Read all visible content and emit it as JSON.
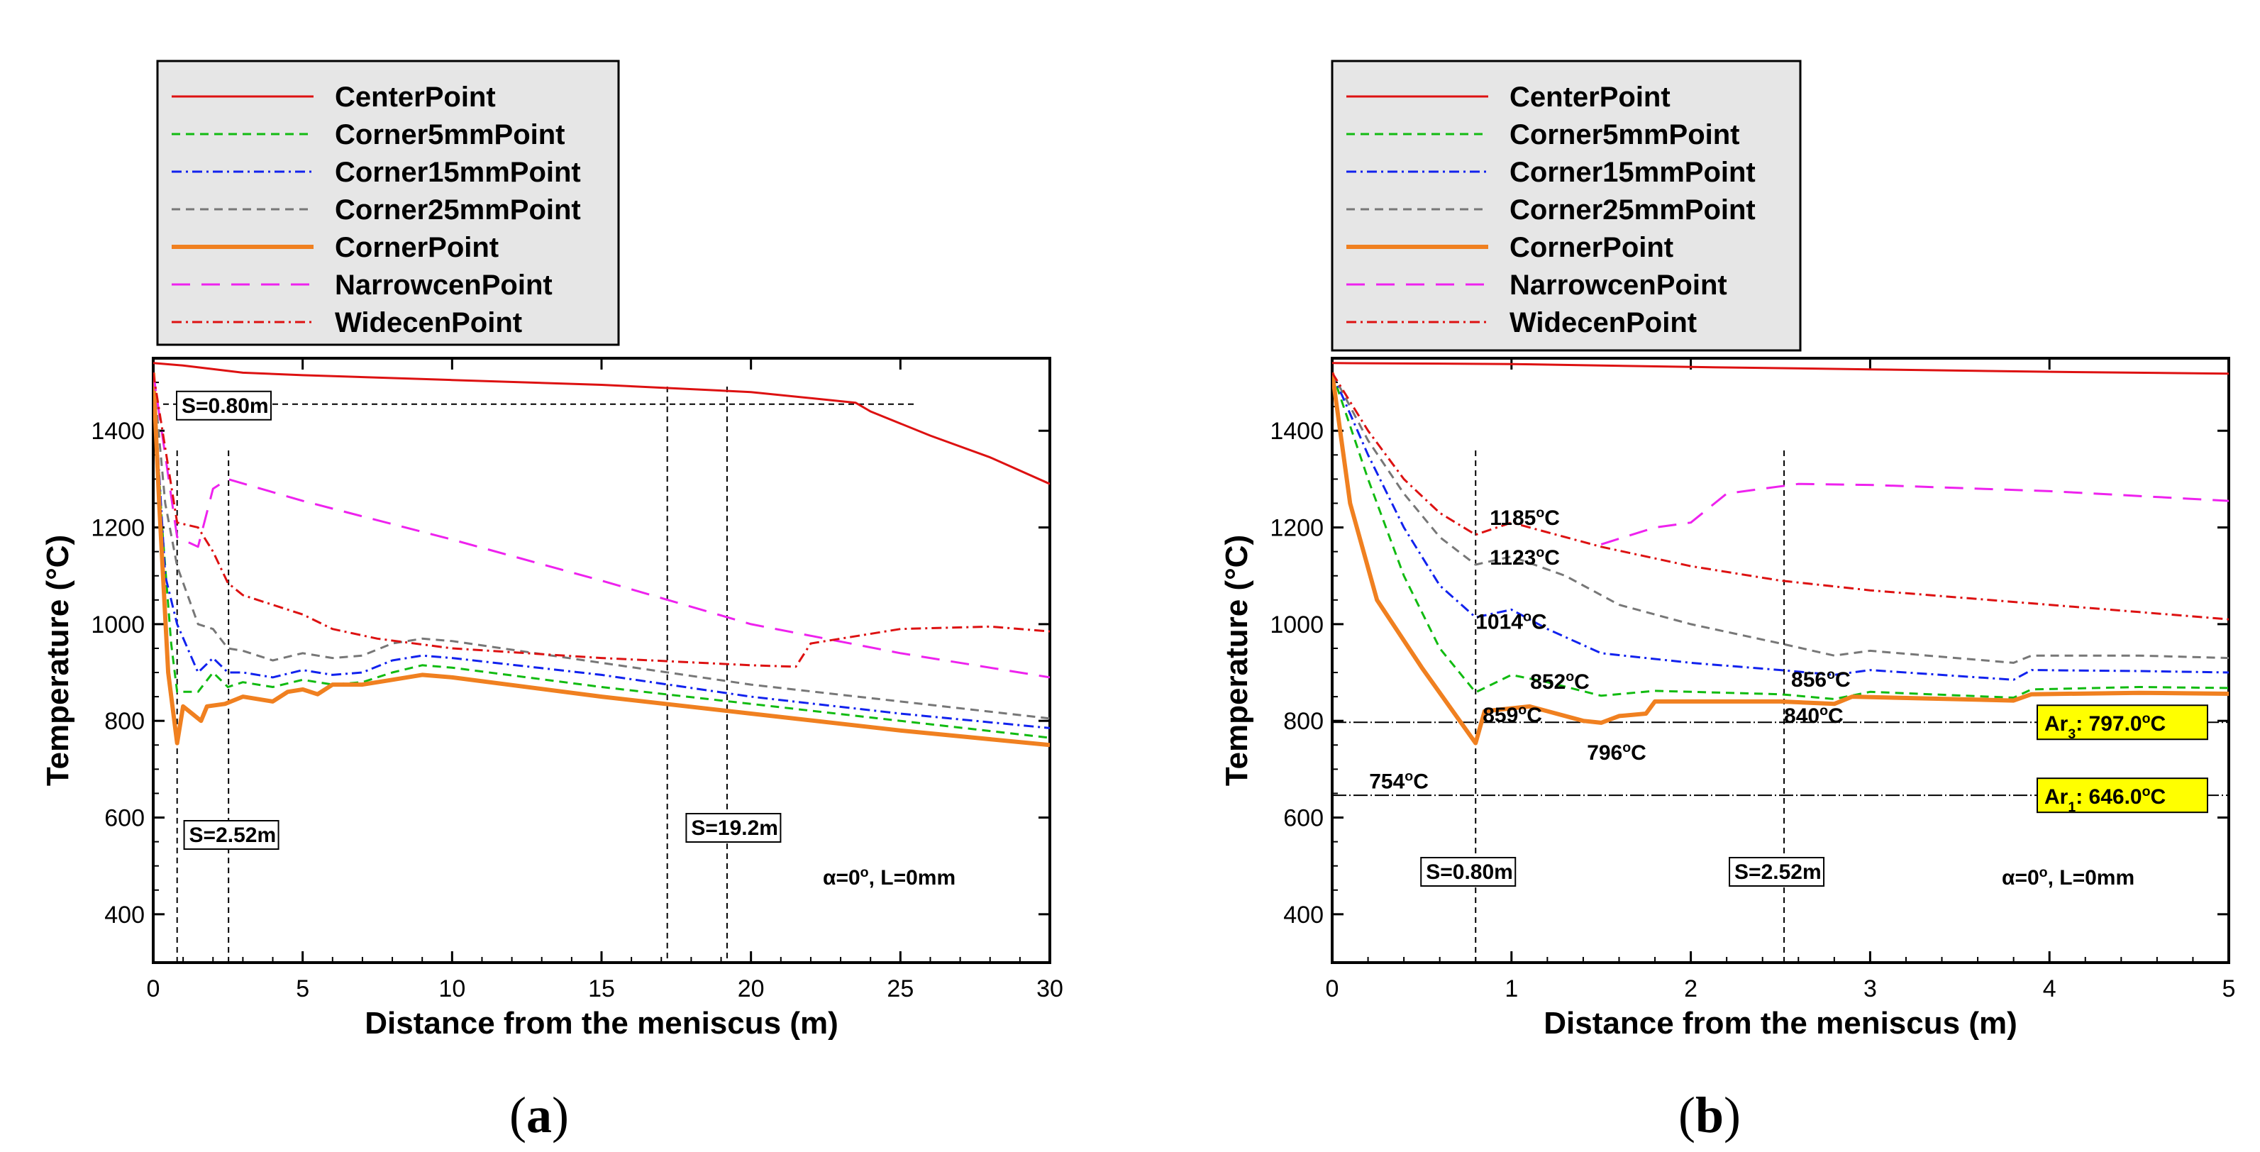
{
  "chart_data": [
    {
      "type": "line",
      "panel_label": "(a)",
      "xlabel": "Distance from the meniscus (m)",
      "ylabel": "Temperature (°C)",
      "xlim": [
        0,
        30
      ],
      "ylim": [
        300,
        1550
      ],
      "xticks": [
        0,
        5,
        10,
        15,
        20,
        25,
        30
      ],
      "yticks": [
        400,
        600,
        800,
        1000,
        1200,
        1400
      ],
      "legend_position": "top-left, outside plot",
      "condition_label": "α=0°, L=0mm",
      "series": [
        {
          "name": "CenterPoint",
          "color": "#dd1111",
          "style": "solid",
          "points": [
            [
              0,
              1540
            ],
            [
              1,
              1535
            ],
            [
              3,
              1520
            ],
            [
              5,
              1515
            ],
            [
              10,
              1505
            ],
            [
              15,
              1495
            ],
            [
              20,
              1480
            ],
            [
              23.5,
              1458
            ],
            [
              24,
              1440
            ],
            [
              26,
              1390
            ],
            [
              28,
              1345
            ],
            [
              30,
              1290
            ]
          ]
        },
        {
          "name": "Corner5mmPoint",
          "color": "#11bb11",
          "style": "dashed",
          "points": [
            [
              0,
              1520
            ],
            [
              0.3,
              1200
            ],
            [
              0.6,
              960
            ],
            [
              0.8,
              860
            ],
            [
              1.5,
              860
            ],
            [
              2,
              900
            ],
            [
              2.5,
              870
            ],
            [
              3,
              880
            ],
            [
              4,
              870
            ],
            [
              5,
              885
            ],
            [
              6,
              875
            ],
            [
              7,
              880
            ],
            [
              8,
              900
            ],
            [
              9,
              915
            ],
            [
              10,
              910
            ],
            [
              15,
              870
            ],
            [
              20,
              835
            ],
            [
              25,
              800
            ],
            [
              30,
              765
            ]
          ]
        },
        {
          "name": "Corner15mmPoint",
          "color": "#1122ee",
          "style": "dashdot",
          "points": [
            [
              0,
              1520
            ],
            [
              0.4,
              1100
            ],
            [
              0.8,
              1000
            ],
            [
              1.5,
              900
            ],
            [
              2,
              930
            ],
            [
              2.5,
              900
            ],
            [
              3,
              900
            ],
            [
              4,
              890
            ],
            [
              5,
              905
            ],
            [
              6,
              895
            ],
            [
              7,
              900
            ],
            [
              8,
              925
            ],
            [
              9,
              935
            ],
            [
              10,
              930
            ],
            [
              15,
              895
            ],
            [
              20,
              850
            ],
            [
              25,
              815
            ],
            [
              30,
              785
            ]
          ]
        },
        {
          "name": "Corner25mmPoint",
          "color": "#777777",
          "style": "dashed",
          "points": [
            [
              0,
              1520
            ],
            [
              0.4,
              1250
            ],
            [
              0.8,
              1120
            ],
            [
              1.5,
              1000
            ],
            [
              2,
              990
            ],
            [
              2.5,
              950
            ],
            [
              3,
              945
            ],
            [
              4,
              925
            ],
            [
              5,
              940
            ],
            [
              6,
              930
            ],
            [
              7,
              935
            ],
            [
              8,
              960
            ],
            [
              9,
              970
            ],
            [
              10,
              965
            ],
            [
              15,
              920
            ],
            [
              20,
              875
            ],
            [
              25,
              840
            ],
            [
              30,
              805
            ]
          ]
        },
        {
          "name": "CornerPoint",
          "color": "#f08020",
          "style": "thick",
          "points": [
            [
              0,
              1520
            ],
            [
              0.2,
              1250
            ],
            [
              0.5,
              900
            ],
            [
              0.8,
              754
            ],
            [
              1,
              830
            ],
            [
              1.3,
              815
            ],
            [
              1.6,
              800
            ],
            [
              1.8,
              830
            ],
            [
              2.4,
              835
            ],
            [
              3,
              850
            ],
            [
              4,
              840
            ],
            [
              4.5,
              860
            ],
            [
              5,
              865
            ],
            [
              5.5,
              855
            ],
            [
              6,
              875
            ],
            [
              7,
              875
            ],
            [
              8,
              885
            ],
            [
              9,
              895
            ],
            [
              10,
              890
            ],
            [
              15,
              850
            ],
            [
              20,
              815
            ],
            [
              25,
              780
            ],
            [
              30,
              750
            ]
          ]
        },
        {
          "name": "NarrowcenPoint",
          "color": "#ee22ee",
          "style": "longdash",
          "points": [
            [
              0,
              1520
            ],
            [
              0.8,
              1180
            ],
            [
              1.5,
              1160
            ],
            [
              2,
              1280
            ],
            [
              2.5,
              1300
            ],
            [
              5,
              1255
            ],
            [
              10,
              1175
            ],
            [
              15,
              1090
            ],
            [
              20,
              1000
            ],
            [
              25,
              940
            ],
            [
              30,
              890
            ]
          ]
        },
        {
          "name": "WidecenPoint",
          "color": "#dd1111",
          "style": "dashdot",
          "points": [
            [
              0,
              1520
            ],
            [
              0.8,
              1210
            ],
            [
              1.5,
              1200
            ],
            [
              2,
              1150
            ],
            [
              2.5,
              1085
            ],
            [
              3,
              1060
            ],
            [
              4,
              1040
            ],
            [
              5,
              1020
            ],
            [
              6,
              990
            ],
            [
              7.5,
              970
            ],
            [
              10,
              950
            ],
            [
              15,
              930
            ],
            [
              20,
              915
            ],
            [
              21.5,
              912
            ],
            [
              22,
              960
            ],
            [
              25,
              990
            ],
            [
              28,
              995
            ],
            [
              30,
              985
            ]
          ]
        }
      ],
      "reference_lines": [
        {
          "orientation": "vertical",
          "x": 0.8,
          "label": "S=0.80m"
        },
        {
          "orientation": "vertical",
          "x": 2.52,
          "label": "S=2.52m"
        },
        {
          "orientation": "vertical",
          "x": 17.2,
          "label": ""
        },
        {
          "orientation": "vertical",
          "x": 19.2,
          "label": "S=19.2m"
        }
      ],
      "horizontal_line": {
        "y": 1455,
        "x_from": 0,
        "x_to": 25.5
      }
    },
    {
      "type": "line",
      "panel_label": "(b)",
      "xlabel": "Distance from the meniscus (m)",
      "ylabel": "Temperature (°C)",
      "xlim": [
        0,
        5
      ],
      "ylim": [
        300,
        1550
      ],
      "xticks": [
        0,
        1,
        2,
        3,
        4,
        5
      ],
      "yticks": [
        400,
        600,
        800,
        1000,
        1200,
        1400
      ],
      "legend_position": "top-left, outside plot",
      "condition_label": "α=0°, L=0mm",
      "series": [
        {
          "name": "CenterPoint",
          "color": "#dd1111",
          "style": "solid",
          "points": [
            [
              0,
              1540
            ],
            [
              1,
              1538
            ],
            [
              2,
              1532
            ],
            [
              3,
              1527
            ],
            [
              4,
              1522
            ],
            [
              5,
              1518
            ]
          ]
        },
        {
          "name": "Corner5mmPoint",
          "color": "#11bb11",
          "style": "dashed",
          "points": [
            [
              0,
              1520
            ],
            [
              0.2,
              1300
            ],
            [
              0.4,
              1100
            ],
            [
              0.6,
              950
            ],
            [
              0.8,
              859
            ],
            [
              1,
              895
            ],
            [
              1.2,
              880
            ],
            [
              1.5,
              852
            ],
            [
              1.8,
              862
            ],
            [
              2.5,
              855
            ],
            [
              2.8,
              845
            ],
            [
              3,
              860
            ],
            [
              3.8,
              848
            ],
            [
              3.9,
              865
            ],
            [
              4.5,
              870
            ],
            [
              5,
              868
            ]
          ]
        },
        {
          "name": "Corner15mmPoint",
          "color": "#1122ee",
          "style": "dashdot",
          "points": [
            [
              0,
              1520
            ],
            [
              0.2,
              1350
            ],
            [
              0.4,
              1200
            ],
            [
              0.6,
              1080
            ],
            [
              0.8,
              1014
            ],
            [
              1,
              1030
            ],
            [
              1.2,
              990
            ],
            [
              1.5,
              940
            ],
            [
              2,
              920
            ],
            [
              2.5,
              905
            ],
            [
              2.8,
              895
            ],
            [
              3,
              905
            ],
            [
              3.8,
              885
            ],
            [
              3.9,
              905
            ],
            [
              4.5,
              903
            ],
            [
              5,
              900
            ]
          ]
        },
        {
          "name": "Corner25mmPoint",
          "color": "#777777",
          "style": "dashed",
          "points": [
            [
              0,
              1520
            ],
            [
              0.2,
              1380
            ],
            [
              0.4,
              1270
            ],
            [
              0.6,
              1180
            ],
            [
              0.8,
              1123
            ],
            [
              1,
              1140
            ],
            [
              1.3,
              1100
            ],
            [
              1.6,
              1040
            ],
            [
              2,
              1000
            ],
            [
              2.5,
              960
            ],
            [
              2.8,
              935
            ],
            [
              3,
              945
            ],
            [
              3.8,
              920
            ],
            [
              3.9,
              935
            ],
            [
              4.5,
              935
            ],
            [
              5,
              930
            ]
          ]
        },
        {
          "name": "CornerPoint",
          "color": "#f08020",
          "style": "thick",
          "points": [
            [
              0,
              1520
            ],
            [
              0.1,
              1250
            ],
            [
              0.25,
              1050
            ],
            [
              0.5,
              910
            ],
            [
              0.8,
              754
            ],
            [
              0.85,
              820
            ],
            [
              1.1,
              830
            ],
            [
              1.4,
              800
            ],
            [
              1.5,
              796
            ],
            [
              1.6,
              810
            ],
            [
              1.75,
              815
            ],
            [
              1.8,
              840
            ],
            [
              2.5,
              840
            ],
            [
              2.8,
              835
            ],
            [
              2.9,
              850
            ],
            [
              3.8,
              842
            ],
            [
              3.9,
              855
            ],
            [
              4.5,
              858
            ],
            [
              5,
              856
            ]
          ]
        },
        {
          "name": "NarrowcenPoint",
          "color": "#ee22ee",
          "style": "longdash",
          "points": [
            [
              1.5,
              1165
            ],
            [
              1.8,
              1200
            ],
            [
              2,
              1210
            ],
            [
              2.2,
              1270
            ],
            [
              2.6,
              1290
            ],
            [
              3,
              1288
            ],
            [
              4,
              1275
            ],
            [
              5,
              1255
            ]
          ]
        },
        {
          "name": "WidecenPoint",
          "color": "#dd1111",
          "style": "dashdot",
          "points": [
            [
              0,
              1520
            ],
            [
              0.2,
              1400
            ],
            [
              0.4,
              1300
            ],
            [
              0.6,
              1230
            ],
            [
              0.8,
              1185
            ],
            [
              1,
              1210
            ],
            [
              1.5,
              1160
            ],
            [
              2,
              1120
            ],
            [
              2.5,
              1090
            ],
            [
              3,
              1070
            ],
            [
              3.5,
              1055
            ],
            [
              4,
              1040
            ],
            [
              4.5,
              1025
            ],
            [
              5,
              1010
            ]
          ]
        }
      ],
      "reference_lines": [
        {
          "orientation": "vertical",
          "x": 0.8,
          "label": "S=0.80m"
        },
        {
          "orientation": "vertical",
          "x": 2.52,
          "label": "S=2.52m"
        },
        {
          "orientation": "horizontal",
          "y": 797,
          "label": "Ar3: 797.0°C"
        },
        {
          "orientation": "horizontal",
          "y": 646,
          "label": "Ar1: 646.0°C"
        }
      ],
      "annotations": [
        {
          "text": "1185°C",
          "x": 0.8,
          "y": 1185
        },
        {
          "text": "1123°C",
          "x": 0.8,
          "y": 1123
        },
        {
          "text": "1014°C",
          "x": 0.8,
          "y": 1014
        },
        {
          "text": "859°C",
          "x": 0.8,
          "y": 859
        },
        {
          "text": "754°C",
          "x": 0.8,
          "y": 754
        },
        {
          "text": "852°C",
          "x": 1.5,
          "y": 852
        },
        {
          "text": "796°C",
          "x": 1.5,
          "y": 796
        },
        {
          "text": "856°C",
          "x": 2.52,
          "y": 856
        },
        {
          "text": "840°C",
          "x": 2.52,
          "y": 840
        }
      ]
    }
  ]
}
